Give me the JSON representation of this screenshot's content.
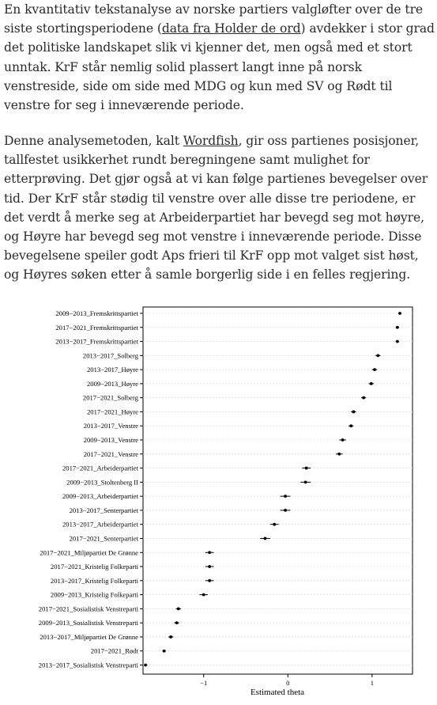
{
  "article": {
    "paragraph1": {
      "before": "En kvantitativ tekstanalyse av norske partiers valgløfter over de tre siste stortingsperiodene (",
      "link": "data fra Holder de ord",
      "after": ") avdekker i stor grad det politiske landskapet slik vi kjenner det, men også med et stort unntak. KrF står nemlig solid plassert langt inne på norsk venstreside, side om side med MDG og kun med SV og Rødt til venstre for seg i inneværende periode."
    },
    "paragraph2": {
      "before": "Denne analysemetoden, kalt ",
      "link": "Wordfish",
      "after": ", gir oss partienes posisjoner, tallfestet usikkerhet rundt beregningene samt mulighet for etterprøving. Det gjør også at vi kan følge partienes bevegelser over tid. Der KrF står stødig til venstre over alle disse tre periodene, er det verdt å merke seg at Arbeiderpartiet har bevegd seg mot høyre, og Høyre har bevegd seg mot venstre i inneværende periode. Disse bevegelsene speiler godt Aps frieri til KrF opp mot valget sist høst, og Høyres søken etter å samle borgerlig side i en felles regjering."
    }
  },
  "chart_data": {
    "type": "scatter",
    "xlabel": "Estimated theta",
    "ylabel": "",
    "title": "",
    "xlim": [
      -1.72,
      1.48
    ],
    "xticks": [
      -1,
      0,
      1
    ],
    "xtick_labels": [
      "−1",
      "0",
      "1"
    ],
    "grid": "horizontal dotted",
    "point_color": "#000000",
    "categories": [
      "2009−2013_Fremskrittspartiet",
      "2017−2021_Fremskrittspartiet",
      "2013−2017_Fremskrittspartiet",
      "2013−2017_Solberg",
      "2013−2017_Høyre",
      "2009−2013_Høyre",
      "2017−2021_Solberg",
      "2017−2021_Høyre",
      "2013−2017_Venstre",
      "2009−2013_Venstre",
      "2017−2021_Venstre",
      "2017−2021_Arbeiderpartiet",
      "2009−2013_Stoltenberg II",
      "2009−2013_Arbeiderpartiet",
      "2013−2017_Senterpartiet",
      "2013−2017_Arbeiderpartiet",
      "2017−2021_Senterpartiet",
      "2017−2021_Miljøpartiet De Grønne",
      "2017−2021_Kristelig Folkeparti",
      "2013−2017_Kristelig Folkeparti",
      "2009−2013_Kristelig Folkeparti",
      "2017−2021_Sosialistisk Venstreparti",
      "2009−2013_Sosialistisk Venstreparti",
      "2013−2017_Miljøpartiet De Grønne",
      "2017−2021_Rødt",
      "2013−2017_Sosialistisk Venstreparti"
    ],
    "values": [
      1.33,
      1.3,
      1.3,
      1.07,
      1.03,
      0.99,
      0.9,
      0.78,
      0.75,
      0.65,
      0.61,
      0.22,
      0.21,
      -0.03,
      -0.03,
      -0.16,
      -0.27,
      -0.93,
      -0.93,
      -0.93,
      -1.0,
      -1.3,
      -1.32,
      -1.39,
      -1.47,
      -1.69
    ],
    "ci_low": [
      1.31,
      1.28,
      1.28,
      1.04,
      1.0,
      0.96,
      0.87,
      0.75,
      0.72,
      0.61,
      0.57,
      0.17,
      0.15,
      -0.09,
      -0.09,
      -0.21,
      -0.33,
      -0.98,
      -0.98,
      -0.98,
      -1.05,
      -1.33,
      -1.35,
      -1.42,
      -1.49,
      -1.71
    ],
    "ci_high": [
      1.35,
      1.32,
      1.32,
      1.1,
      1.06,
      1.02,
      0.93,
      0.81,
      0.78,
      0.69,
      0.65,
      0.27,
      0.27,
      0.03,
      0.03,
      -0.11,
      -0.21,
      -0.88,
      -0.88,
      -0.88,
      -0.95,
      -1.27,
      -1.29,
      -1.36,
      -1.45,
      -1.67
    ]
  }
}
